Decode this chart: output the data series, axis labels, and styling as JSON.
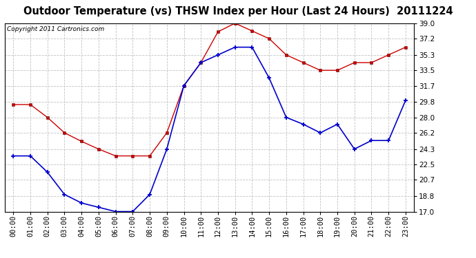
{
  "title": "Outdoor Temperature (vs) THSW Index per Hour (Last 24 Hours)  20111224",
  "copyright": "Copyright 2011 Cartronics.com",
  "hours": [
    "00:00",
    "01:00",
    "02:00",
    "03:00",
    "04:00",
    "05:00",
    "06:00",
    "07:00",
    "08:00",
    "09:00",
    "10:00",
    "11:00",
    "12:00",
    "13:00",
    "14:00",
    "15:00",
    "16:00",
    "17:00",
    "18:00",
    "19:00",
    "20:00",
    "21:00",
    "22:00",
    "23:00"
  ],
  "red_data": [
    29.5,
    29.5,
    28.0,
    26.2,
    25.2,
    24.3,
    23.5,
    23.5,
    23.5,
    26.2,
    31.7,
    34.4,
    38.0,
    39.0,
    38.1,
    37.2,
    35.3,
    34.4,
    33.5,
    33.5,
    34.4,
    34.4,
    35.3,
    36.2
  ],
  "blue_data": [
    23.5,
    23.5,
    21.6,
    19.0,
    18.0,
    17.5,
    17.0,
    17.0,
    19.0,
    24.3,
    31.7,
    34.4,
    35.3,
    36.2,
    36.2,
    32.6,
    28.0,
    27.2,
    26.2,
    27.2,
    24.3,
    25.3,
    25.3,
    30.0
  ],
  "red_color": "#cc0000",
  "blue_color": "#0000cc",
  "bg_color": "#ffffff",
  "grid_color": "#bbbbbb",
  "ylim": [
    17.0,
    39.0
  ],
  "yticks": [
    17.0,
    18.8,
    20.7,
    22.5,
    24.3,
    26.2,
    28.0,
    29.8,
    31.7,
    33.5,
    35.3,
    37.2,
    39.0
  ],
  "title_fontsize": 10.5,
  "copyright_fontsize": 6.5,
  "tick_fontsize": 7.5
}
